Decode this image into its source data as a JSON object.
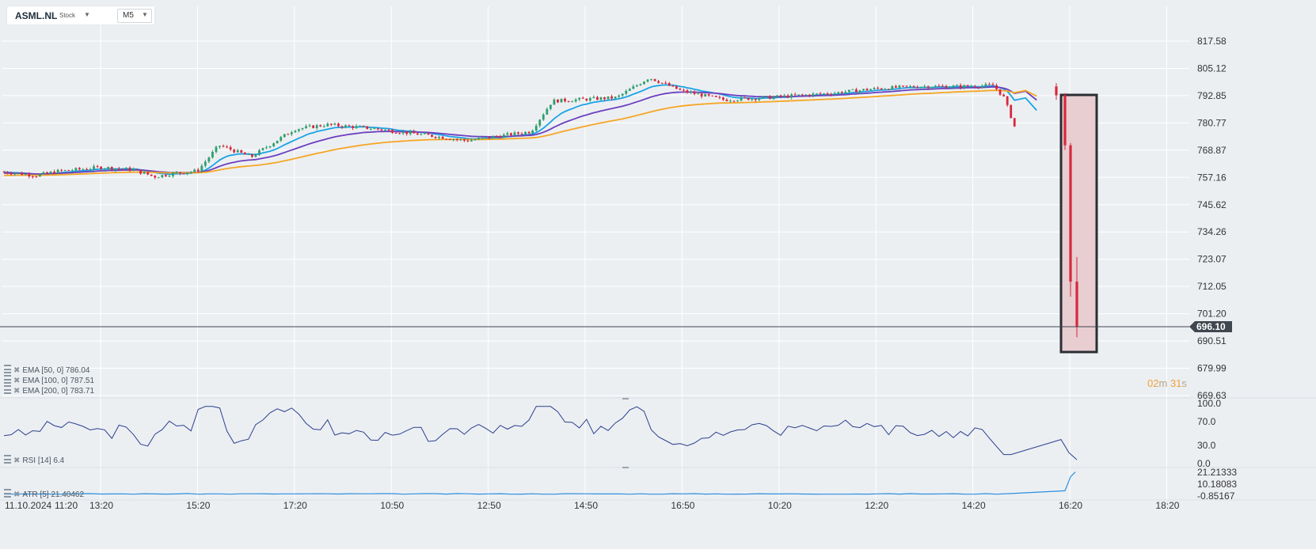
{
  "symbol": {
    "name": "ASML.NL",
    "type": "Stock",
    "timeframe": "M5"
  },
  "price_axis_labels": [
    "817.58",
    "805.12",
    "792.85",
    "780.77",
    "768.87",
    "757.16",
    "745.62",
    "734.26",
    "723.07",
    "712.05",
    "701.20",
    "690.51",
    "679.99",
    "669.63"
  ],
  "current_price": "696.10",
  "countdown": {
    "min": "02",
    "min_unit": "m",
    "sec": "31",
    "sec_unit": "s"
  },
  "indicators": {
    "ema50": {
      "label": "EMA",
      "params": "[50, 0]",
      "value": "786.04"
    },
    "ema100": {
      "label": "EMA",
      "params": "[100, 0]",
      "value": "787.51"
    },
    "ema200": {
      "label": "EMA",
      "params": "[200, 0]",
      "value": "783.71"
    },
    "rsi": {
      "label": "RSI",
      "params": "[14]",
      "value": "6.4",
      "axis": [
        "100.0",
        "70.0",
        "30.0",
        "0.0"
      ]
    },
    "atr": {
      "label": "ATR",
      "params": "[5]",
      "value": "21.40462",
      "axis": [
        "21.21333",
        "10.18083",
        "-0.85167"
      ]
    }
  },
  "time_axis": [
    {
      "t": "11.10.2024"
    },
    {
      "t": "11:20"
    },
    {
      "t": "13:20"
    },
    {
      "t": "15:20"
    },
    {
      "t": "17:20"
    },
    {
      "t": "10:50"
    },
    {
      "t": "12:50"
    },
    {
      "t": "14:50"
    },
    {
      "t": "16:50"
    },
    {
      "t": "10:20"
    },
    {
      "t": "12:20"
    },
    {
      "t": "14:20"
    },
    {
      "t": "16:20"
    },
    {
      "t": "18:20"
    }
  ],
  "colors": {
    "up": "#2f9e6e",
    "down": "#d8283c",
    "ema50": "#1aa3e6",
    "ema100": "#6b3fbf",
    "ema200": "#f5a623",
    "rsi": "#2a3f8f",
    "atr": "#2c8fe0",
    "grid": "#ffffff",
    "highlight_fill": "#e8cdd1",
    "highlight_border": "#2a2e33",
    "price_tag": "#3f4750"
  },
  "chart_data": {
    "type": "candlestick",
    "timeframe": "M5",
    "price_range": [
      669.63,
      817.58
    ],
    "ohlc_path": [
      [
        0,
        759.5
      ],
      [
        0.03,
        758.0
      ],
      [
        0.05,
        759.8
      ],
      [
        0.09,
        761.5
      ],
      [
        0.12,
        760.5
      ],
      [
        0.14,
        757.5
      ],
      [
        0.16,
        759.0
      ],
      [
        0.18,
        760.0
      ],
      [
        0.2,
        771.0
      ],
      [
        0.23,
        766.0
      ],
      [
        0.27,
        778.0
      ],
      [
        0.3,
        780.0
      ],
      [
        0.34,
        778.5
      ],
      [
        0.4,
        775.0
      ],
      [
        0.43,
        773.0
      ],
      [
        0.49,
        777.0
      ],
      [
        0.51,
        790.5
      ],
      [
        0.55,
        791.5
      ],
      [
        0.57,
        792.0
      ],
      [
        0.6,
        801.0
      ],
      [
        0.63,
        795.0
      ],
      [
        0.67,
        791.0
      ],
      [
        0.71,
        792.0
      ],
      [
        0.77,
        794.0
      ],
      [
        0.81,
        796.0
      ],
      [
        0.85,
        797.0
      ],
      [
        0.89,
        797.0
      ],
      [
        0.92,
        797.5
      ],
      [
        0.93,
        792.0
      ],
      [
        0.95,
        766.0
      ],
      [
        0.965,
        715.0
      ],
      [
        0.975,
        697.0
      ]
    ],
    "series": [
      {
        "name": "EMA [50, 0]",
        "last": 786.04
      },
      {
        "name": "EMA [100, 0]",
        "last": 787.51
      },
      {
        "name": "EMA [200, 0]",
        "last": 783.71
      }
    ],
    "rsi_last": 6.4,
    "atr_last": 21.40462,
    "last_price": 696.1
  }
}
